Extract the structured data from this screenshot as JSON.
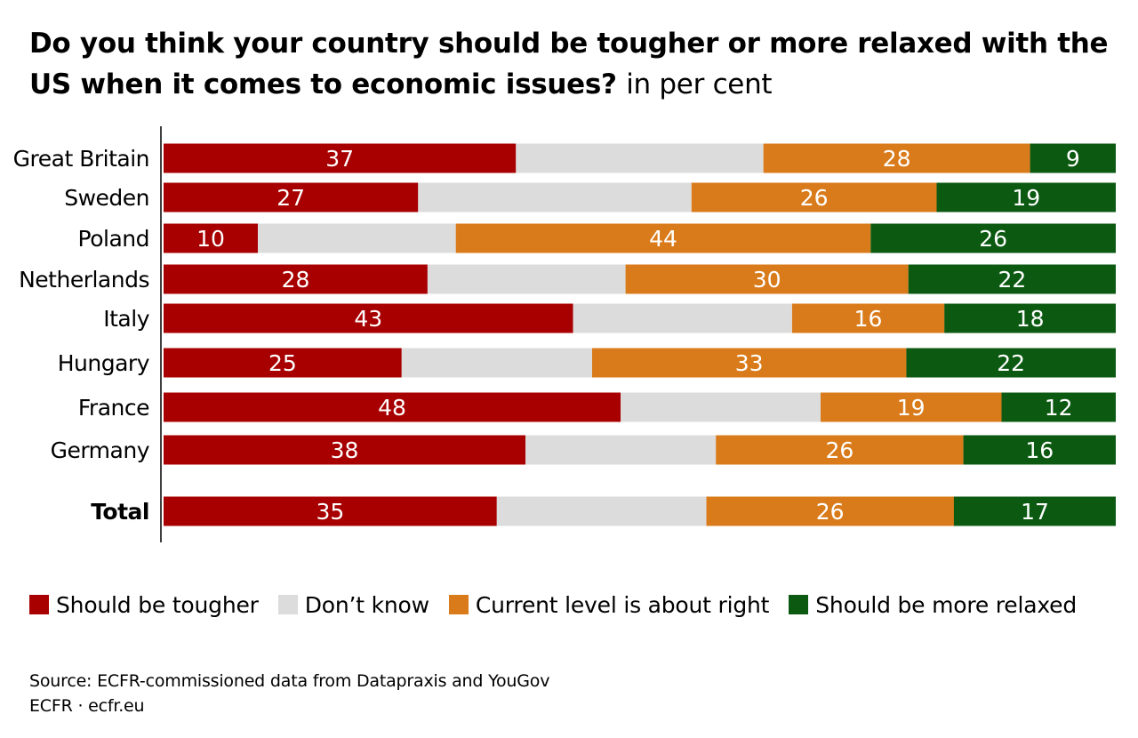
{
  "chart_data": {
    "type": "bar",
    "orientation": "horizontal",
    "stacked": true,
    "title": "Do you think your country should be tougher or more relaxed with the US when it comes to economic issues?",
    "title_unit": "in per cent",
    "categories": [
      "Great Britain",
      "Sweden",
      "Poland",
      "Netherlands",
      "Italy",
      "Hungary",
      "France",
      "Germany",
      "Total"
    ],
    "series": [
      {
        "name": "Should be tougher",
        "color": "#a80000",
        "label_color": "#ffffff",
        "values": [
          37,
          27,
          10,
          28,
          43,
          25,
          48,
          38,
          35
        ],
        "labels": [
          "37",
          "27",
          "10",
          "28",
          "43",
          "25",
          "48",
          "38",
          "35"
        ]
      },
      {
        "name": "Don’t know",
        "color": "#dcdcdc",
        "label_color": "#000000",
        "values": [
          26,
          29,
          21,
          21,
          23,
          20,
          21,
          20,
          22
        ],
        "labels": [
          "",
          "",
          "",
          "",
          "",
          "",
          "",
          "",
          ""
        ]
      },
      {
        "name": "Current level is about right",
        "color": "#d97b1b",
        "label_color": "#ffffff",
        "values": [
          28,
          26,
          44,
          30,
          16,
          33,
          19,
          26,
          26
        ],
        "labels": [
          "28",
          "26",
          "44",
          "30",
          "16",
          "33",
          "19",
          "26",
          "26"
        ]
      },
      {
        "name": "Should be more relaxed",
        "color": "#0c5a12",
        "label_color": "#ffffff",
        "values": [
          9,
          19,
          26,
          22,
          18,
          22,
          12,
          16,
          17
        ],
        "labels": [
          "9",
          "19",
          "26",
          "22",
          "18",
          "22",
          "12",
          "16",
          "17"
        ]
      }
    ],
    "xlim": [
      0,
      100
    ],
    "grid": false,
    "legend": "bottom"
  },
  "source": {
    "line1": "Source: ECFR-commissioned data from Datapraxis and YouGov",
    "line2": "ECFR · ecfr.eu"
  }
}
